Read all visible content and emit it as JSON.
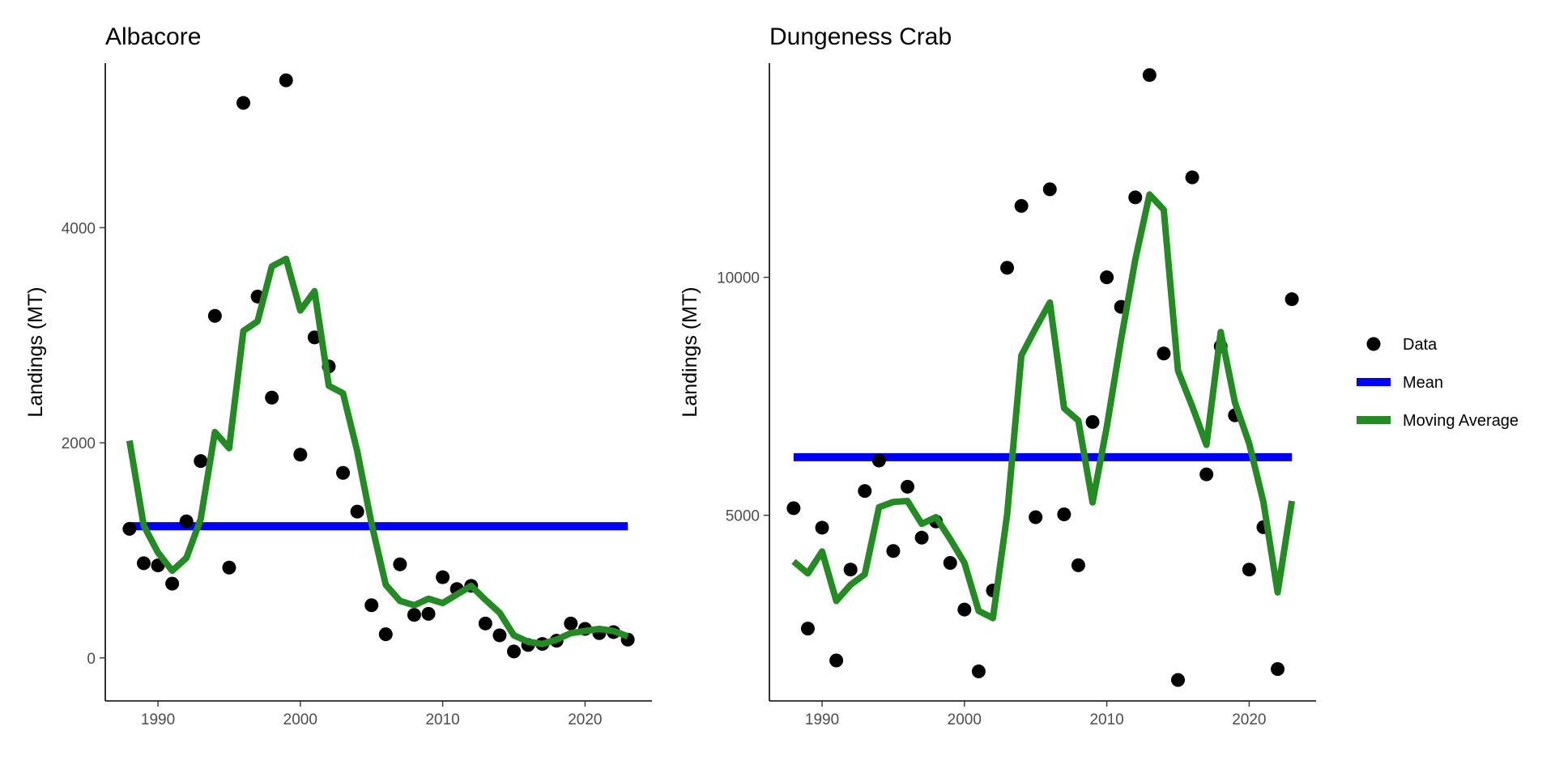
{
  "chart_data": [
    {
      "type": "line",
      "title": "Albacore",
      "xlabel": "",
      "ylabel": "Landings (MT)",
      "xlim": [
        1986.3,
        2024.7
      ],
      "ylim": [
        -400,
        5530
      ],
      "x_ticks": [
        1990,
        2000,
        2010,
        2020
      ],
      "y_ticks": [
        0,
        2000,
        4000
      ],
      "x_tick_labels": [
        "1990",
        "2000",
        "2010",
        "2020"
      ],
      "y_tick_labels": [
        "0",
        "2000",
        "4000"
      ],
      "series": [
        {
          "name": "Data",
          "kind": "points",
          "color": "#000000",
          "x": [
            1988,
            1989,
            1990,
            1991,
            1992,
            1993,
            1994,
            1995,
            1996,
            1997,
            1998,
            1999,
            2000,
            2001,
            2002,
            2003,
            2004,
            2005,
            2006,
            2007,
            2008,
            2009,
            2010,
            2011,
            2012,
            2013,
            2014,
            2015,
            2016,
            2017,
            2018,
            2019,
            2020,
            2021,
            2022,
            2023
          ],
          "y": [
            1200,
            880,
            860,
            690,
            1270,
            1830,
            3180,
            840,
            5160,
            3360,
            2420,
            5370,
            1890,
            2980,
            2710,
            1720,
            1360,
            490,
            220,
            870,
            400,
            410,
            750,
            640,
            670,
            320,
            210,
            60,
            120,
            130,
            160,
            320,
            270,
            230,
            240,
            170
          ]
        },
        {
          "name": "Mean",
          "kind": "line",
          "color": "#0000ff",
          "x": [
            1988,
            2023
          ],
          "y": [
            1225,
            1225
          ]
        },
        {
          "name": "Moving Average",
          "kind": "line",
          "color": "#228b22",
          "x": [
            1988,
            1989,
            1990,
            1991,
            1992,
            1993,
            1994,
            1995,
            1996,
            1997,
            1998,
            1999,
            2000,
            2001,
            2002,
            2003,
            2004,
            2005,
            2006,
            2007,
            2008,
            2009,
            2010,
            2011,
            2012,
            2013,
            2014,
            2015,
            2016,
            2017,
            2018,
            2019,
            2020,
            2021,
            2022,
            2023
          ],
          "y": [
            2020,
            1230,
            980,
            810,
            930,
            1290,
            2100,
            1950,
            3040,
            3130,
            3640,
            3710,
            3230,
            3410,
            2530,
            2460,
            1920,
            1250,
            680,
            530,
            490,
            550,
            510,
            590,
            670,
            540,
            420,
            210,
            150,
            130,
            170,
            230,
            250,
            270,
            250,
            200
          ]
        }
      ]
    },
    {
      "type": "line",
      "title": "Dungeness Crab",
      "xlabel": "",
      "ylabel": "Landings (MT)",
      "xlim": [
        1986.3,
        2024.7
      ],
      "ylim": [
        1100,
        14500
      ],
      "x_ticks": [
        1990,
        2000,
        2010,
        2020
      ],
      "y_ticks": [
        5000,
        10000
      ],
      "x_tick_labels": [
        "1990",
        "2000",
        "2010",
        "2020"
      ],
      "y_tick_labels": [
        "5000",
        "10000"
      ],
      "series": [
        {
          "name": "Data",
          "kind": "points",
          "color": "#000000",
          "x": [
            1988,
            1989,
            1990,
            1991,
            1992,
            1993,
            1994,
            1995,
            1996,
            1997,
            1998,
            1999,
            2000,
            2001,
            2002,
            2003,
            2004,
            2005,
            2006,
            2007,
            2008,
            2009,
            2010,
            2011,
            2012,
            2013,
            2014,
            2015,
            2016,
            2017,
            2018,
            2019,
            2020,
            2021,
            2022,
            2023
          ],
          "y": [
            5150,
            2620,
            4740,
            1950,
            3860,
            5510,
            6150,
            4250,
            5600,
            4530,
            4870,
            4000,
            3020,
            1720,
            3420,
            10200,
            11500,
            4960,
            11850,
            5020,
            3950,
            6960,
            10000,
            9380,
            11680,
            14250,
            8400,
            1540,
            12100,
            5860,
            8550,
            7100,
            3860,
            4750,
            1770,
            9540
          ]
        },
        {
          "name": "Mean",
          "kind": "line",
          "color": "#0000ff",
          "x": [
            1988,
            2023
          ],
          "y": [
            6220,
            6220
          ]
        },
        {
          "name": "Moving Average",
          "kind": "line",
          "color": "#228b22",
          "x": [
            1988,
            1989,
            1990,
            1991,
            1992,
            1993,
            1994,
            1995,
            1996,
            1997,
            1998,
            1999,
            2000,
            2001,
            2002,
            2003,
            2004,
            2005,
            2006,
            2007,
            2008,
            2009,
            2010,
            2011,
            2012,
            2013,
            2014,
            2015,
            2016,
            2017,
            2018,
            2019,
            2020,
            2021,
            2022,
            2023
          ],
          "y": [
            4030,
            3780,
            4240,
            3200,
            3540,
            3760,
            5170,
            5280,
            5300,
            4820,
            4960,
            4500,
            4000,
            2990,
            2840,
            5020,
            8360,
            8930,
            9470,
            7250,
            6990,
            5270,
            6860,
            8690,
            10370,
            11740,
            11420,
            8040,
            7290,
            6480,
            8850,
            7370,
            6510,
            5280,
            3380,
            5300
          ]
        }
      ]
    }
  ],
  "legend": {
    "placement": "right",
    "items": [
      {
        "label": "Data",
        "kind": "point",
        "color": "#000000"
      },
      {
        "label": "Mean",
        "kind": "line",
        "color": "#0000ff"
      },
      {
        "label": "Moving Average",
        "kind": "line",
        "color": "#228b22"
      }
    ]
  }
}
